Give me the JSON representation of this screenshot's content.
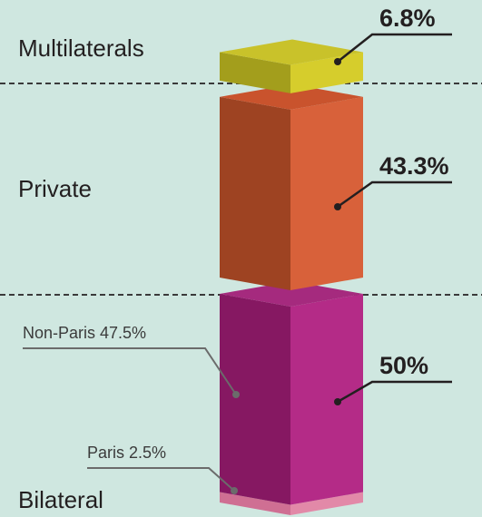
{
  "chart_data": {
    "type": "stacked-blocks",
    "categories": [
      "Multilaterals",
      "Private",
      "Bilateral"
    ],
    "values": [
      6.8,
      43.3,
      50
    ],
    "value_labels": [
      "6.8%",
      "43.3%",
      "50%"
    ],
    "colors": [
      [
        "#c9c22a",
        "#a39e1c",
        "#d6cd2c"
      ],
      [
        "#c9532d",
        "#9e4322",
        "#d8613a"
      ],
      [
        "#a52a7e",
        "#861862",
        "#b42b87"
      ]
    ],
    "bilateral_split": [
      {
        "value": 47.5,
        "label": "Non-Paris 47.5%"
      },
      {
        "value": 2.5,
        "label": "Paris  2.5%",
        "colors": [
          "#cf6f93",
          "#e289a8"
        ]
      }
    ]
  }
}
